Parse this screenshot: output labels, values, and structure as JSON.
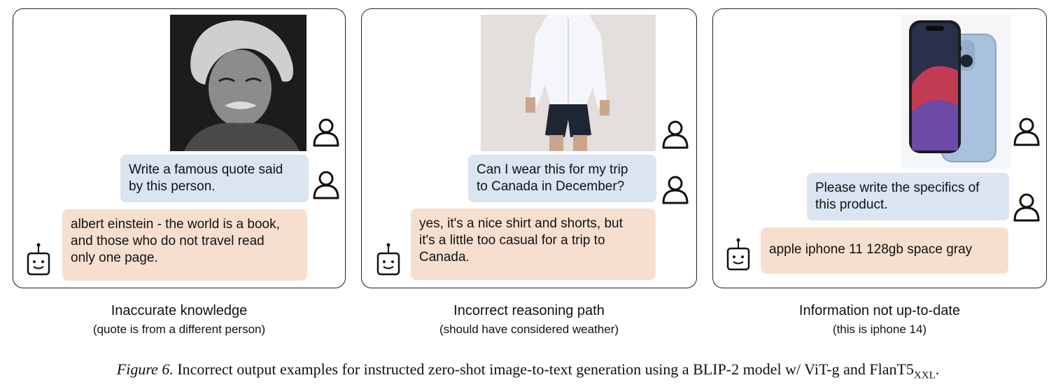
{
  "panels": [
    {
      "user_prompt": "Write a famous quote said\nby this person.",
      "model_response": "albert einstein - the world is a book,\nand those who do not travel read\nonly one page.",
      "caption_title": "Inaccurate knowledge",
      "caption_subtitle": "(quote is from a different person)"
    },
    {
      "user_prompt": "Can I wear this for my trip\nto Canada in December?",
      "model_response": "yes, it's a nice shirt and shorts, but\nit's a little too casual for a trip to\nCanada.",
      "caption_title": "Incorrect reasoning path",
      "caption_subtitle": "(should have considered weather)"
    },
    {
      "user_prompt": "Please write the specifics of\nthis product.",
      "model_response": "apple iphone 11 128gb space gray",
      "caption_title": "Information not up-to-date",
      "caption_subtitle": "(this is iphone 14)"
    }
  ],
  "figure_caption": {
    "label": "Figure 6.",
    "text": "Incorrect output examples for instructed zero-shot image-to-text generation using a BLIP-2 model w/ ViT-g and FlanT5",
    "subscript": "XXL",
    "end": "."
  },
  "colors": {
    "user_bubble": "#dbe4f1",
    "bot_bubble": "#f7dfcf",
    "border": "#222222"
  },
  "icons": [
    "user-icon",
    "robot-icon"
  ]
}
